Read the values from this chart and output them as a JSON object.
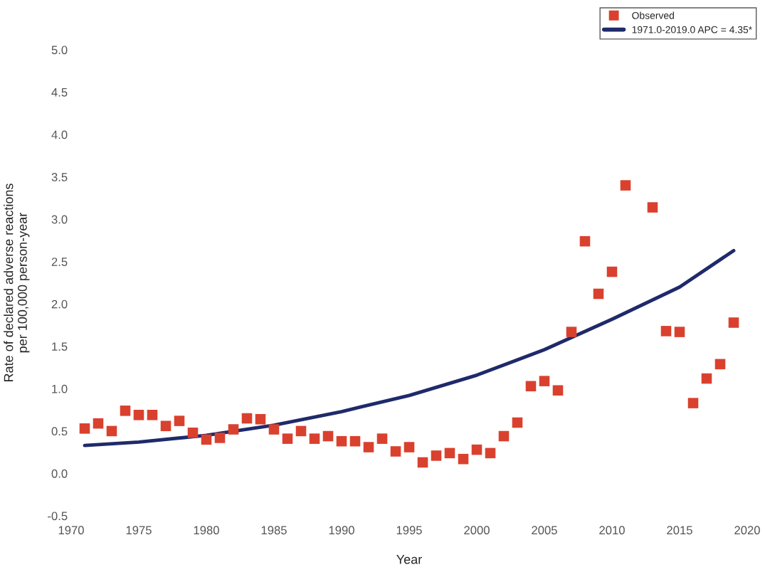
{
  "chart_data": {
    "type": "scatter",
    "xlabel": "Year",
    "ylabel": "Rate of declared adverse reactions\nper 100,000 person-year",
    "xlim": [
      1970,
      2020
    ],
    "xticks": [
      1970,
      1975,
      1980,
      1985,
      1990,
      1995,
      2000,
      2005,
      2010,
      2015,
      2020
    ],
    "ylim": [
      -0.5,
      5.0
    ],
    "yticks": [
      {
        "value": -0.5,
        "label": "-0.5"
      },
      {
        "value": 0.0,
        "label": "0.0"
      },
      {
        "value": 0.5,
        "label": "0.5"
      },
      {
        "value": 1.0,
        "label": "1.0"
      },
      {
        "value": 1.5,
        "label": "1.5"
      },
      {
        "value": 2.0,
        "label": "2.0"
      },
      {
        "value": 2.5,
        "label": "2.5"
      },
      {
        "value": 3.0,
        "label": "3.0"
      },
      {
        "value": 3.5,
        "label": "3.5"
      },
      {
        "value": 4.0,
        "label": "4.0"
      },
      {
        "value": 4.5,
        "label": "4.5"
      },
      {
        "value": 5.0,
        "label": "5.0"
      }
    ],
    "grid": false,
    "legend": "top right",
    "series": [
      {
        "name": "Observed",
        "marker": "square",
        "color": "#d9412e",
        "x": [
          1971,
          1972,
          1973,
          1974,
          1975,
          1976,
          1977,
          1978,
          1979,
          1980,
          1981,
          1982,
          1983,
          1984,
          1985,
          1986,
          1987,
          1988,
          1989,
          1990,
          1991,
          1992,
          1993,
          1994,
          1995,
          1996,
          1997,
          1998,
          1999,
          2000,
          2001,
          2002,
          2003,
          2004,
          2005,
          2006,
          2007,
          2008,
          2009,
          2010,
          2011,
          2012,
          2013,
          2014,
          2015,
          2016,
          2017,
          2018,
          2019
        ],
        "values": [
          0.53,
          0.59,
          0.5,
          0.74,
          0.69,
          0.69,
          0.56,
          0.62,
          0.48,
          0.4,
          0.42,
          0.52,
          0.65,
          0.64,
          0.52,
          0.41,
          0.5,
          0.41,
          0.44,
          0.38,
          0.38,
          0.31,
          0.41,
          0.26,
          0.31,
          0.13,
          0.21,
          0.24,
          0.17,
          0.28,
          0.24,
          0.44,
          0.6,
          1.03,
          1.09,
          0.98,
          1.67,
          2.74,
          2.12,
          2.38,
          3.4,
          null,
          3.14,
          1.68,
          1.67,
          0.83,
          1.12,
          1.29,
          1.78
        ]
      },
      {
        "name": "1971.0-2019.0 APC = 4.35*",
        "type": "line",
        "marker": "none",
        "line_style": "solid",
        "color": "#1f2a6b",
        "x": [
          1971,
          1975,
          1980,
          1985,
          1990,
          1995,
          2000,
          2005,
          2010,
          2015,
          2019
        ],
        "values": [
          0.33,
          0.37,
          0.45,
          0.57,
          0.73,
          0.92,
          1.16,
          1.46,
          1.82,
          2.2,
          2.63
        ]
      }
    ]
  }
}
